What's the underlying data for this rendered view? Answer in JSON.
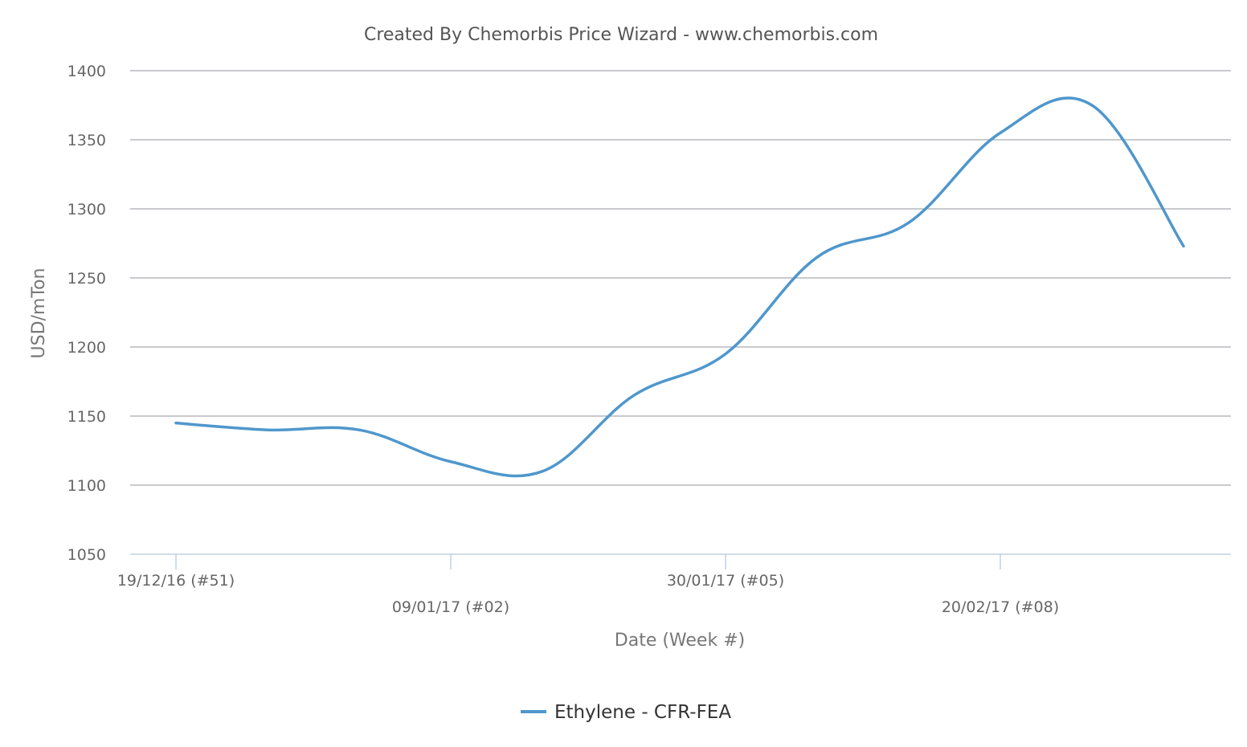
{
  "chart_data": {
    "type": "line",
    "title": "Created By Chemorbis Price Wizard - www.chemorbis.com",
    "xlabel": "Date (Week #)",
    "ylabel": "USD/mTon",
    "ylim": [
      1050,
      1400
    ],
    "yticks": [
      1050,
      1100,
      1150,
      1200,
      1250,
      1300,
      1350,
      1400
    ],
    "xticks": [
      {
        "label": "19/12/16 (#51)",
        "week": 0
      },
      {
        "label": "09/01/17 (#02)",
        "week": 3
      },
      {
        "label": "30/01/17 (#05)",
        "week": 6
      },
      {
        "label": "20/02/17 (#08)",
        "week": 9
      }
    ],
    "grid": true,
    "legend_position": "bottom-center",
    "series": [
      {
        "name": "Ethylene - CFR-FEA",
        "color": "#4f97cc",
        "weeks": [
          0,
          1,
          2,
          3,
          4,
          5,
          6,
          7,
          8,
          9,
          10,
          11
        ],
        "values": [
          1145,
          1140,
          1140,
          1117,
          1110,
          1165,
          1195,
          1265,
          1290,
          1355,
          1375,
          1273
        ]
      }
    ]
  }
}
